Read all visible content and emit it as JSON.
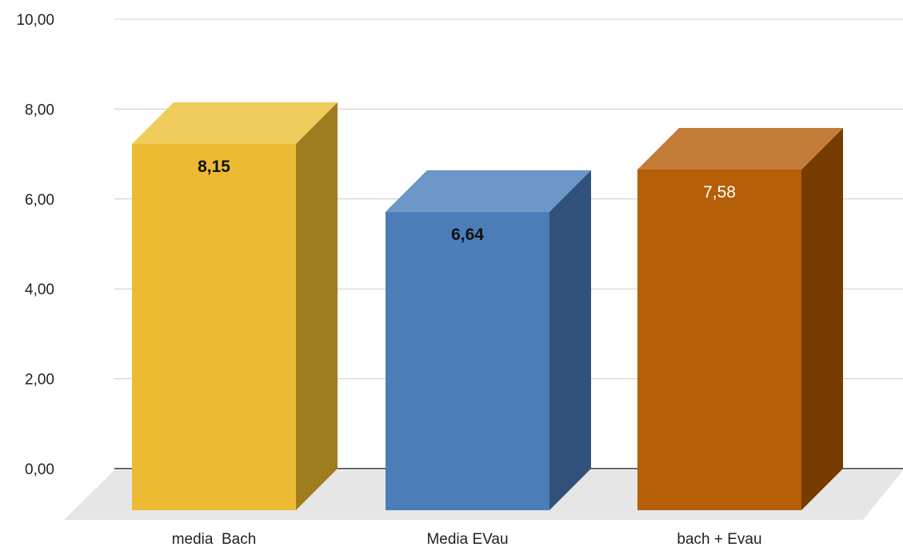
{
  "chart_data": {
    "type": "bar",
    "style": "3d-column",
    "categories": [
      "media  Bach",
      "Media EVau",
      "bach + Evau"
    ],
    "values": [
      8.15,
      6.64,
      7.58
    ],
    "data_labels": [
      "8,15",
      "6,64",
      "7,58"
    ],
    "data_label_bold": [
      true,
      true,
      false
    ],
    "data_label_colors": [
      "#111111",
      "#111111",
      "#ffffff"
    ],
    "colors": [
      "#ecbb33",
      "#4b7db9",
      "#b45f06"
    ],
    "side_colors": [
      "#9f7d1f",
      "#32527b",
      "#773c00"
    ],
    "top_colors": [
      "#f0cc5c",
      "#6d96c8",
      "#c37c38"
    ],
    "yticks": [
      "0,00",
      "2,00",
      "4,00",
      "6,00",
      "8,00",
      "10,00"
    ],
    "ylim": [
      0,
      10
    ],
    "grid": true,
    "legend": "none"
  }
}
